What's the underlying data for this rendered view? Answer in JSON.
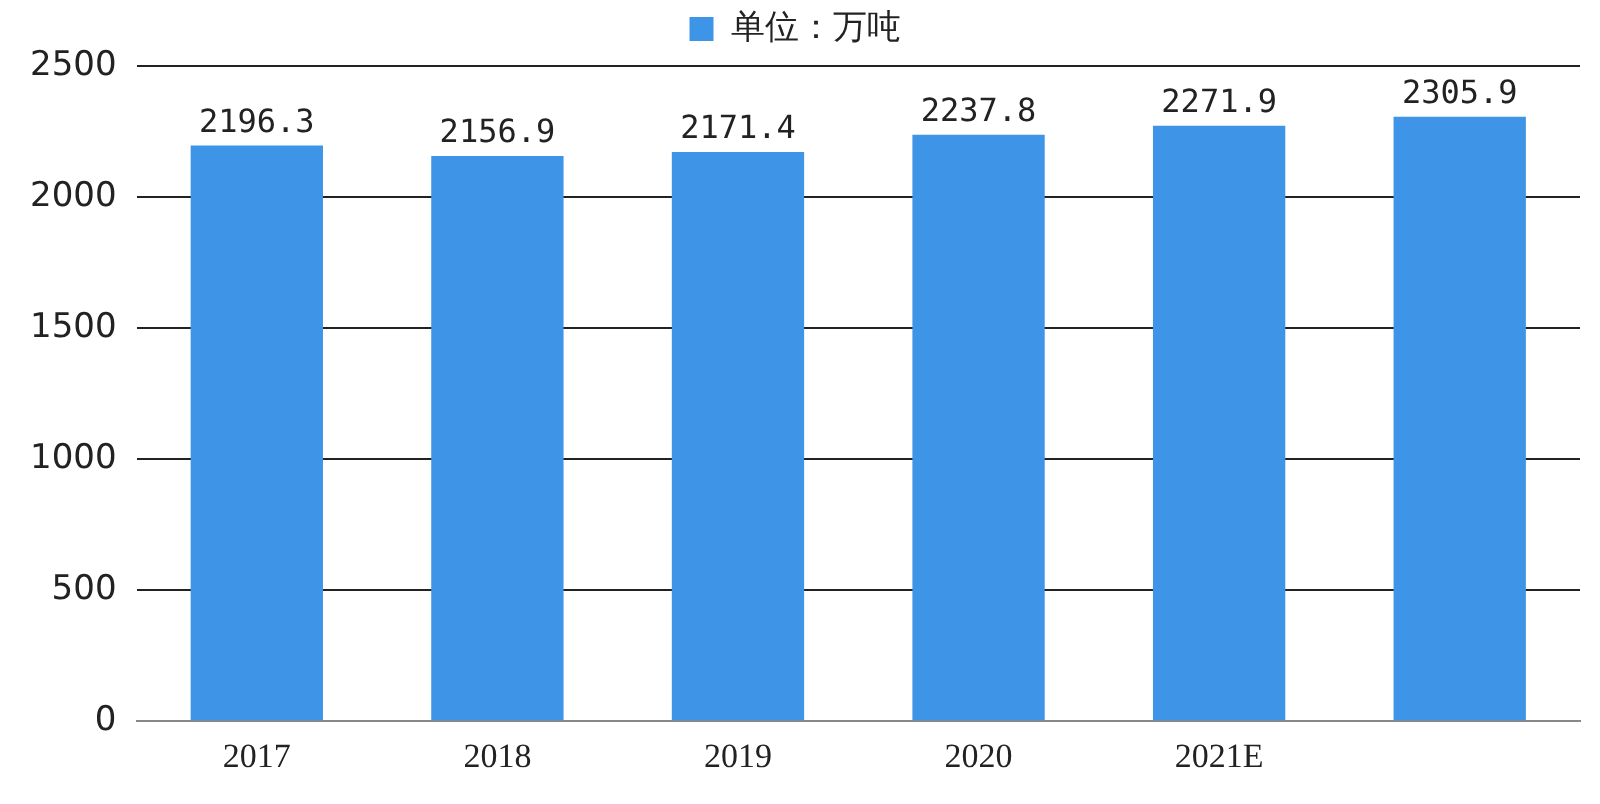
{
  "chart_data": {
    "type": "bar",
    "categories": [
      "2017",
      "2018",
      "2019",
      "2020",
      "2021E",
      null
    ],
    "series": [
      {
        "name": "单位：万吨",
        "color": "#3e95e8",
        "values": [
          2196.3,
          2156.9,
          2171.4,
          2237.8,
          2271.9,
          2305.9
        ]
      }
    ],
    "ylim": [
      0,
      2500
    ],
    "yticks": [
      0,
      500,
      1000,
      1500,
      2000,
      2500
    ],
    "grid": "y",
    "legend": "top",
    "data_labels": true
  }
}
